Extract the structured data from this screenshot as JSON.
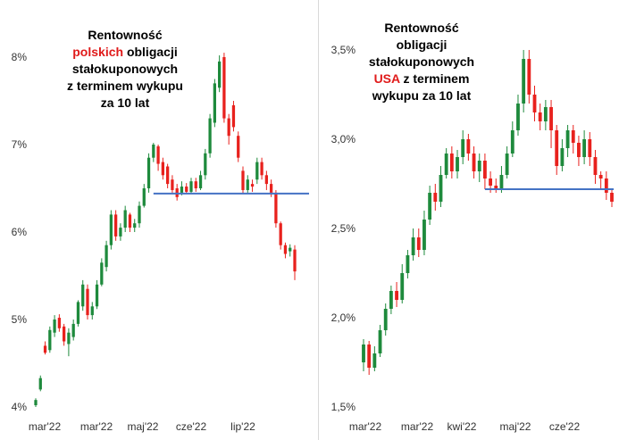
{
  "chart_data": [
    {
      "type": "candlestick",
      "title_parts": [
        "Rentowność",
        "polskich",
        "obligacji",
        "stałokuponowych",
        "z terminem wykupu",
        "za 10 lat"
      ],
      "y_ticks": [
        "4%",
        "5%",
        "6%",
        "7%",
        "8%"
      ],
      "ylim": [
        4.0,
        8.3
      ],
      "x_ticks": [
        "mar'22",
        "mar'22",
        "maj'22",
        "cze'22",
        "lip'22"
      ],
      "support_level": 6.44,
      "colors": {
        "up": "#1e8a3c",
        "down": "#e8211d",
        "support": "#4472c4"
      },
      "candles": [
        {
          "o": 4.02,
          "c": 4.08,
          "h": 4.1,
          "l": 4.0
        },
        {
          "o": 4.2,
          "c": 4.33,
          "h": 4.36,
          "l": 4.18
        },
        {
          "o": 4.7,
          "c": 4.62,
          "h": 4.75,
          "l": 4.6
        },
        {
          "o": 4.65,
          "c": 4.88,
          "h": 4.92,
          "l": 4.62
        },
        {
          "o": 4.85,
          "c": 5.0,
          "h": 5.05,
          "l": 4.8
        },
        {
          "o": 5.02,
          "c": 4.9,
          "h": 5.06,
          "l": 4.86
        },
        {
          "o": 4.92,
          "c": 4.75,
          "h": 4.95,
          "l": 4.7
        },
        {
          "o": 4.72,
          "c": 4.85,
          "h": 4.9,
          "l": 4.58
        },
        {
          "o": 4.8,
          "c": 4.95,
          "h": 5.0,
          "l": 4.76
        },
        {
          "o": 4.95,
          "c": 5.2,
          "h": 5.22,
          "l": 4.92
        },
        {
          "o": 5.15,
          "c": 5.4,
          "h": 5.45,
          "l": 5.1
        },
        {
          "o": 5.35,
          "c": 5.05,
          "h": 5.4,
          "l": 5.0
        },
        {
          "o": 5.05,
          "c": 5.15,
          "h": 5.2,
          "l": 5.0
        },
        {
          "o": 5.15,
          "c": 5.4,
          "h": 5.45,
          "l": 5.12
        },
        {
          "o": 5.4,
          "c": 5.65,
          "h": 5.7,
          "l": 5.38
        },
        {
          "o": 5.6,
          "c": 5.85,
          "h": 5.9,
          "l": 5.55
        },
        {
          "o": 5.85,
          "c": 6.2,
          "h": 6.25,
          "l": 5.8
        },
        {
          "o": 6.2,
          "c": 5.95,
          "h": 6.25,
          "l": 5.9
        },
        {
          "o": 5.95,
          "c": 6.05,
          "h": 6.1,
          "l": 5.9
        },
        {
          "o": 6.05,
          "c": 6.25,
          "h": 6.3,
          "l": 6.0
        },
        {
          "o": 6.2,
          "c": 6.05,
          "h": 6.22,
          "l": 6.0
        },
        {
          "o": 6.05,
          "c": 6.1,
          "h": 6.15,
          "l": 6.0
        },
        {
          "o": 6.1,
          "c": 6.3,
          "h": 6.35,
          "l": 6.05
        },
        {
          "o": 6.3,
          "c": 6.5,
          "h": 6.55,
          "l": 6.28
        },
        {
          "o": 6.5,
          "c": 6.85,
          "h": 6.9,
          "l": 6.45
        },
        {
          "o": 6.85,
          "c": 7.0,
          "h": 7.02,
          "l": 6.8
        },
        {
          "o": 6.98,
          "c": 6.78,
          "h": 7.0,
          "l": 6.7
        },
        {
          "o": 6.8,
          "c": 6.65,
          "h": 6.85,
          "l": 6.6
        },
        {
          "o": 6.75,
          "c": 6.55,
          "h": 6.78,
          "l": 6.5
        },
        {
          "o": 6.6,
          "c": 6.48,
          "h": 6.65,
          "l": 6.45
        },
        {
          "o": 6.5,
          "c": 6.4,
          "h": 6.55,
          "l": 6.36
        },
        {
          "o": 6.45,
          "c": 6.52,
          "h": 6.58,
          "l": 6.42
        },
        {
          "o": 6.52,
          "c": 6.46,
          "h": 6.56,
          "l": 6.44
        },
        {
          "o": 6.46,
          "c": 6.58,
          "h": 6.62,
          "l": 6.44
        },
        {
          "o": 6.58,
          "c": 6.5,
          "h": 6.62,
          "l": 6.46
        },
        {
          "o": 6.5,
          "c": 6.65,
          "h": 6.7,
          "l": 6.48
        },
        {
          "o": 6.65,
          "c": 6.9,
          "h": 6.95,
          "l": 6.6
        },
        {
          "o": 6.9,
          "c": 7.3,
          "h": 7.35,
          "l": 6.85
        },
        {
          "o": 7.25,
          "c": 7.7,
          "h": 7.75,
          "l": 7.2
        },
        {
          "o": 7.65,
          "c": 7.95,
          "h": 8.02,
          "l": 7.6
        },
        {
          "o": 8.0,
          "c": 7.3,
          "h": 8.05,
          "l": 7.25
        },
        {
          "o": 7.3,
          "c": 7.1,
          "h": 7.35,
          "l": 7.0
        },
        {
          "o": 7.45,
          "c": 7.2,
          "h": 7.5,
          "l": 7.15
        },
        {
          "o": 7.1,
          "c": 6.85,
          "h": 7.15,
          "l": 6.8
        },
        {
          "o": 6.7,
          "c": 6.48,
          "h": 6.75,
          "l": 6.44
        },
        {
          "o": 6.48,
          "c": 6.6,
          "h": 6.65,
          "l": 6.45
        },
        {
          "o": 6.55,
          "c": 6.52,
          "h": 6.6,
          "l": 6.46
        },
        {
          "o": 6.6,
          "c": 6.8,
          "h": 6.85,
          "l": 6.55
        },
        {
          "o": 6.8,
          "c": 6.65,
          "h": 6.85,
          "l": 6.6
        },
        {
          "o": 6.65,
          "c": 6.55,
          "h": 6.7,
          "l": 6.48
        },
        {
          "o": 6.55,
          "c": 6.45,
          "h": 6.6,
          "l": 6.4
        },
        {
          "o": 6.45,
          "c": 6.1,
          "h": 6.48,
          "l": 6.05
        },
        {
          "o": 6.1,
          "c": 5.85,
          "h": 6.12,
          "l": 5.8
        },
        {
          "o": 5.85,
          "c": 5.75,
          "h": 5.88,
          "l": 5.7
        },
        {
          "o": 5.78,
          "c": 5.82,
          "h": 5.86,
          "l": 5.72
        },
        {
          "o": 5.8,
          "c": 5.55,
          "h": 5.85,
          "l": 5.45
        }
      ]
    },
    {
      "type": "candlestick",
      "title_parts": [
        "Rentowność",
        "obligacji",
        "stałokuponowych",
        "USA",
        "z terminem",
        "wykupu za 10 lat"
      ],
      "y_ticks": [
        "1,5%",
        "2,0%",
        "2,5%",
        "3,0%",
        "3,5%"
      ],
      "ylim": [
        1.5,
        3.6
      ],
      "x_ticks": [
        "mar'22",
        "mar'22",
        "kwi'22",
        "maj'22",
        "cze'22"
      ],
      "support_level": 2.72,
      "colors": {
        "up": "#1e8a3c",
        "down": "#e8211d",
        "support": "#4472c4"
      },
      "candles": [
        {
          "o": 1.75,
          "c": 1.85,
          "h": 1.88,
          "l": 1.7
        },
        {
          "o": 1.85,
          "c": 1.72,
          "h": 1.87,
          "l": 1.68
        },
        {
          "o": 1.72,
          "c": 1.8,
          "h": 1.84,
          "l": 1.7
        },
        {
          "o": 1.8,
          "c": 1.93,
          "h": 1.96,
          "l": 1.78
        },
        {
          "o": 1.93,
          "c": 2.05,
          "h": 2.08,
          "l": 1.9
        },
        {
          "o": 2.05,
          "c": 2.15,
          "h": 2.18,
          "l": 2.02
        },
        {
          "o": 2.15,
          "c": 2.1,
          "h": 2.2,
          "l": 2.06
        },
        {
          "o": 2.1,
          "c": 2.25,
          "h": 2.3,
          "l": 2.08
        },
        {
          "o": 2.25,
          "c": 2.35,
          "h": 2.38,
          "l": 2.22
        },
        {
          "o": 2.35,
          "c": 2.45,
          "h": 2.5,
          "l": 2.32
        },
        {
          "o": 2.45,
          "c": 2.38,
          "h": 2.5,
          "l": 2.34
        },
        {
          "o": 2.38,
          "c": 2.55,
          "h": 2.6,
          "l": 2.35
        },
        {
          "o": 2.55,
          "c": 2.7,
          "h": 2.74,
          "l": 2.52
        },
        {
          "o": 2.7,
          "c": 2.65,
          "h": 2.75,
          "l": 2.6
        },
        {
          "o": 2.65,
          "c": 2.8,
          "h": 2.85,
          "l": 2.62
        },
        {
          "o": 2.8,
          "c": 2.92,
          "h": 2.95,
          "l": 2.78
        },
        {
          "o": 2.92,
          "c": 2.82,
          "h": 2.96,
          "l": 2.78
        },
        {
          "o": 2.82,
          "c": 2.9,
          "h": 2.94,
          "l": 2.78
        },
        {
          "o": 2.9,
          "c": 3.0,
          "h": 3.05,
          "l": 2.86
        },
        {
          "o": 3.0,
          "c": 2.92,
          "h": 3.03,
          "l": 2.88
        },
        {
          "o": 2.92,
          "c": 2.82,
          "h": 2.96,
          "l": 2.78
        },
        {
          "o": 2.82,
          "c": 2.88,
          "h": 2.92,
          "l": 2.76
        },
        {
          "o": 2.88,
          "c": 2.78,
          "h": 2.92,
          "l": 2.72
        },
        {
          "o": 2.78,
          "c": 2.74,
          "h": 2.82,
          "l": 2.7
        },
        {
          "o": 2.74,
          "c": 2.72,
          "h": 2.78,
          "l": 2.7
        },
        {
          "o": 2.72,
          "c": 2.8,
          "h": 2.85,
          "l": 2.7
        },
        {
          "o": 2.8,
          "c": 2.92,
          "h": 2.96,
          "l": 2.78
        },
        {
          "o": 2.92,
          "c": 3.05,
          "h": 3.1,
          "l": 2.9
        },
        {
          "o": 3.05,
          "c": 3.2,
          "h": 3.25,
          "l": 3.02
        },
        {
          "o": 3.2,
          "c": 3.45,
          "h": 3.5,
          "l": 3.15
        },
        {
          "o": 3.45,
          "c": 3.25,
          "h": 3.5,
          "l": 3.2
        },
        {
          "o": 3.25,
          "c": 3.15,
          "h": 3.3,
          "l": 3.1
        },
        {
          "o": 3.15,
          "c": 3.1,
          "h": 3.2,
          "l": 3.05
        },
        {
          "o": 3.1,
          "c": 3.18,
          "h": 3.22,
          "l": 3.05
        },
        {
          "o": 3.18,
          "c": 3.05,
          "h": 3.22,
          "l": 2.95
        },
        {
          "o": 3.05,
          "c": 2.85,
          "h": 3.08,
          "l": 2.8
        },
        {
          "o": 2.85,
          "c": 2.95,
          "h": 3.0,
          "l": 2.82
        },
        {
          "o": 2.95,
          "c": 3.05,
          "h": 3.08,
          "l": 2.9
        },
        {
          "o": 3.05,
          "c": 2.98,
          "h": 3.08,
          "l": 2.92
        },
        {
          "o": 2.98,
          "c": 2.9,
          "h": 3.02,
          "l": 2.85
        },
        {
          "o": 2.9,
          "c": 3.0,
          "h": 3.05,
          "l": 2.86
        },
        {
          "o": 3.0,
          "c": 2.9,
          "h": 3.04,
          "l": 2.85
        },
        {
          "o": 2.9,
          "c": 2.8,
          "h": 2.94,
          "l": 2.75
        },
        {
          "o": 2.8,
          "c": 2.78,
          "h": 2.82,
          "l": 2.72
        },
        {
          "o": 2.78,
          "c": 2.7,
          "h": 2.82,
          "l": 2.66
        },
        {
          "o": 2.7,
          "c": 2.65,
          "h": 2.72,
          "l": 2.62
        }
      ]
    }
  ]
}
